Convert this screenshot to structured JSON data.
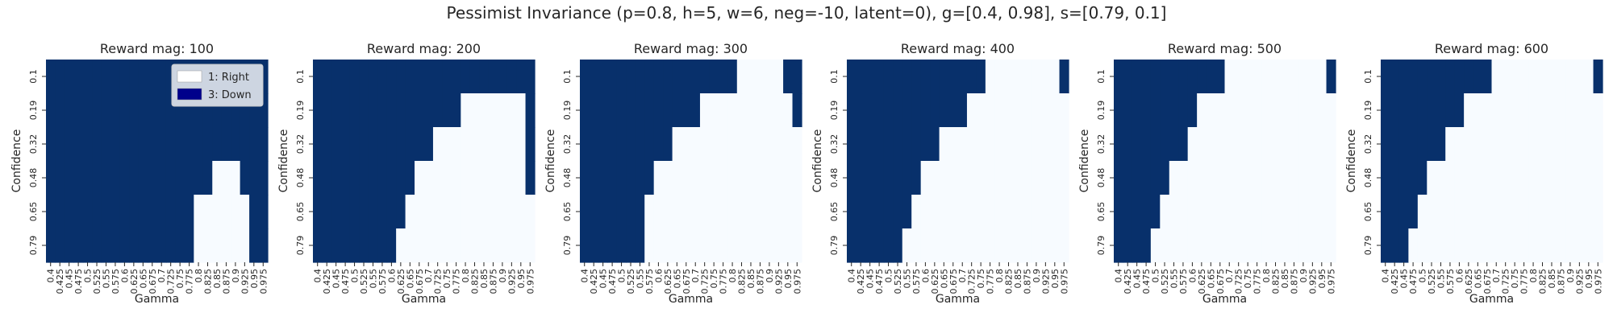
{
  "figure": {
    "title": "Pessimist Invariance (p=0.8, h=5, w=6, neg=-10, latent=0), g=[0.4, 0.98], s=[0.79, 0.1]"
  },
  "colors": {
    "right": "#f7fbff",
    "down": "#08306b",
    "legend_right": "#ffffff",
    "legend_down": "#00008b"
  },
  "legend": {
    "placement": "upper-right of first panel",
    "items": [
      {
        "label": "1: Right",
        "color": "#ffffff"
      },
      {
        "label": "3: Down",
        "color": "#00008b"
      }
    ]
  },
  "chart_data": [
    {
      "type": "heatmap",
      "title": "Reward mag: 100",
      "xlabel": "Gamma",
      "ylabel": "Confidence",
      "gamma_start": 0.4,
      "gamma_step": 0.025,
      "gamma_count": 24,
      "confidence": [
        0.1,
        0.19,
        0.32,
        0.48,
        0.65,
        0.79
      ],
      "x_tick_labels": [
        "0.4",
        "0.425",
        "0.45",
        "0.475",
        "0.5",
        "0.525",
        "0.55",
        "0.575",
        "0.6",
        "0.625",
        "0.65",
        "0.675",
        "0.7",
        "0.725",
        "0.75",
        "0.775",
        "0.8",
        "0.825",
        "0.85",
        "0.875",
        "0.9",
        "0.925",
        "0.95",
        "0.975"
      ],
      "y_tick_labels": [
        "0.1",
        "0.19",
        "0.32",
        "0.48",
        "0.65",
        "0.79"
      ],
      "categories": {
        "1": "Right",
        "3": "Down"
      },
      "rows": [
        [
          3,
          3,
          3,
          3,
          3,
          3,
          3,
          3,
          3,
          3,
          3,
          3,
          3,
          3,
          3,
          3,
          3,
          3,
          3,
          3,
          3,
          3,
          3,
          3
        ],
        [
          3,
          3,
          3,
          3,
          3,
          3,
          3,
          3,
          3,
          3,
          3,
          3,
          3,
          3,
          3,
          3,
          3,
          3,
          3,
          3,
          3,
          3,
          3,
          3
        ],
        [
          3,
          3,
          3,
          3,
          3,
          3,
          3,
          3,
          3,
          3,
          3,
          3,
          3,
          3,
          3,
          3,
          3,
          3,
          3,
          3,
          3,
          3,
          3,
          3
        ],
        [
          3,
          3,
          3,
          3,
          3,
          3,
          3,
          3,
          3,
          3,
          3,
          3,
          3,
          3,
          3,
          3,
          3,
          3,
          1,
          1,
          1,
          3,
          3,
          3
        ],
        [
          3,
          3,
          3,
          3,
          3,
          3,
          3,
          3,
          3,
          3,
          3,
          3,
          3,
          3,
          3,
          3,
          1,
          1,
          1,
          1,
          1,
          1,
          3,
          3
        ],
        [
          3,
          3,
          3,
          3,
          3,
          3,
          3,
          3,
          3,
          3,
          3,
          3,
          3,
          3,
          3,
          3,
          1,
          1,
          1,
          1,
          1,
          1,
          3,
          3
        ]
      ]
    },
    {
      "type": "heatmap",
      "title": "Reward mag: 200",
      "xlabel": "Gamma",
      "ylabel": "Confidence",
      "gamma_start": 0.4,
      "gamma_step": 0.025,
      "gamma_count": 24,
      "confidence": [
        0.1,
        0.19,
        0.32,
        0.48,
        0.65,
        0.79
      ],
      "x_tick_labels": [
        "0.4",
        "0.425",
        "0.45",
        "0.475",
        "0.5",
        "0.525",
        "0.55",
        "0.575",
        "0.6",
        "0.625",
        "0.65",
        "0.675",
        "0.7",
        "0.725",
        "0.75",
        "0.775",
        "0.8",
        "0.825",
        "0.85",
        "0.875",
        "0.9",
        "0.925",
        "0.95",
        "0.975"
      ],
      "y_tick_labels": [
        "0.1",
        "0.19",
        "0.32",
        "0.48",
        "0.65",
        "0.79"
      ],
      "categories": {
        "1": "Right",
        "3": "Down"
      },
      "rows": [
        [
          3,
          3,
          3,
          3,
          3,
          3,
          3,
          3,
          3,
          3,
          3,
          3,
          3,
          3,
          3,
          3,
          3,
          3,
          3,
          3,
          3,
          3,
          3,
          3
        ],
        [
          3,
          3,
          3,
          3,
          3,
          3,
          3,
          3,
          3,
          3,
          3,
          3,
          3,
          3,
          3,
          3,
          1,
          1,
          1,
          1,
          1,
          1,
          1,
          3
        ],
        [
          3,
          3,
          3,
          3,
          3,
          3,
          3,
          3,
          3,
          3,
          3,
          3,
          3,
          1,
          1,
          1,
          1,
          1,
          1,
          1,
          1,
          1,
          1,
          3
        ],
        [
          3,
          3,
          3,
          3,
          3,
          3,
          3,
          3,
          3,
          3,
          3,
          1,
          1,
          1,
          1,
          1,
          1,
          1,
          1,
          1,
          1,
          1,
          1,
          3
        ],
        [
          3,
          3,
          3,
          3,
          3,
          3,
          3,
          3,
          3,
          3,
          1,
          1,
          1,
          1,
          1,
          1,
          1,
          1,
          1,
          1,
          1,
          1,
          1,
          1
        ],
        [
          3,
          3,
          3,
          3,
          3,
          3,
          3,
          3,
          3,
          1,
          1,
          1,
          1,
          1,
          1,
          1,
          1,
          1,
          1,
          1,
          1,
          1,
          1,
          1
        ]
      ]
    },
    {
      "type": "heatmap",
      "title": "Reward mag: 300",
      "xlabel": "Gamma",
      "ylabel": "Confidence",
      "gamma_start": 0.4,
      "gamma_step": 0.025,
      "gamma_count": 24,
      "confidence": [
        0.1,
        0.19,
        0.32,
        0.48,
        0.65,
        0.79
      ],
      "x_tick_labels": [
        "0.4",
        "0.425",
        "0.45",
        "0.475",
        "0.5",
        "0.525",
        "0.55",
        "0.575",
        "0.6",
        "0.625",
        "0.65",
        "0.675",
        "0.7",
        "0.725",
        "0.75",
        "0.775",
        "0.8",
        "0.825",
        "0.85",
        "0.875",
        "0.9",
        "0.925",
        "0.95",
        "0.975"
      ],
      "y_tick_labels": [
        "0.1",
        "0.19",
        "0.32",
        "0.48",
        "0.65",
        "0.79"
      ],
      "categories": {
        "1": "Right",
        "3": "Down"
      },
      "rows": [
        [
          3,
          3,
          3,
          3,
          3,
          3,
          3,
          3,
          3,
          3,
          3,
          3,
          3,
          3,
          3,
          3,
          3,
          1,
          1,
          1,
          1,
          1,
          3,
          3
        ],
        [
          3,
          3,
          3,
          3,
          3,
          3,
          3,
          3,
          3,
          3,
          3,
          3,
          3,
          1,
          1,
          1,
          1,
          1,
          1,
          1,
          1,
          1,
          1,
          3
        ],
        [
          3,
          3,
          3,
          3,
          3,
          3,
          3,
          3,
          3,
          3,
          1,
          1,
          1,
          1,
          1,
          1,
          1,
          1,
          1,
          1,
          1,
          1,
          1,
          1
        ],
        [
          3,
          3,
          3,
          3,
          3,
          3,
          3,
          3,
          1,
          1,
          1,
          1,
          1,
          1,
          1,
          1,
          1,
          1,
          1,
          1,
          1,
          1,
          1,
          1
        ],
        [
          3,
          3,
          3,
          3,
          3,
          3,
          3,
          1,
          1,
          1,
          1,
          1,
          1,
          1,
          1,
          1,
          1,
          1,
          1,
          1,
          1,
          1,
          1,
          1
        ],
        [
          3,
          3,
          3,
          3,
          3,
          3,
          3,
          1,
          1,
          1,
          1,
          1,
          1,
          1,
          1,
          1,
          1,
          1,
          1,
          1,
          1,
          1,
          1,
          1
        ]
      ]
    },
    {
      "type": "heatmap",
      "title": "Reward mag: 400",
      "xlabel": "Gamma",
      "ylabel": "Confidence",
      "gamma_start": 0.4,
      "gamma_step": 0.025,
      "gamma_count": 24,
      "confidence": [
        0.1,
        0.19,
        0.32,
        0.48,
        0.65,
        0.79
      ],
      "x_tick_labels": [
        "0.4",
        "0.425",
        "0.45",
        "0.475",
        "0.5",
        "0.525",
        "0.55",
        "0.575",
        "0.6",
        "0.625",
        "0.65",
        "0.675",
        "0.7",
        "0.725",
        "0.75",
        "0.775",
        "0.8",
        "0.825",
        "0.85",
        "0.875",
        "0.9",
        "0.925",
        "0.95",
        "0.975"
      ],
      "y_tick_labels": [
        "0.1",
        "0.19",
        "0.32",
        "0.48",
        "0.65",
        "0.79"
      ],
      "categories": {
        "1": "Right",
        "3": "Down"
      },
      "rows": [
        [
          3,
          3,
          3,
          3,
          3,
          3,
          3,
          3,
          3,
          3,
          3,
          3,
          3,
          3,
          3,
          1,
          1,
          1,
          1,
          1,
          1,
          1,
          1,
          3
        ],
        [
          3,
          3,
          3,
          3,
          3,
          3,
          3,
          3,
          3,
          3,
          3,
          3,
          3,
          1,
          1,
          1,
          1,
          1,
          1,
          1,
          1,
          1,
          1,
          1
        ],
        [
          3,
          3,
          3,
          3,
          3,
          3,
          3,
          3,
          3,
          3,
          1,
          1,
          1,
          1,
          1,
          1,
          1,
          1,
          1,
          1,
          1,
          1,
          1,
          1
        ],
        [
          3,
          3,
          3,
          3,
          3,
          3,
          3,
          3,
          1,
          1,
          1,
          1,
          1,
          1,
          1,
          1,
          1,
          1,
          1,
          1,
          1,
          1,
          1,
          1
        ],
        [
          3,
          3,
          3,
          3,
          3,
          3,
          3,
          1,
          1,
          1,
          1,
          1,
          1,
          1,
          1,
          1,
          1,
          1,
          1,
          1,
          1,
          1,
          1,
          1
        ],
        [
          3,
          3,
          3,
          3,
          3,
          3,
          1,
          1,
          1,
          1,
          1,
          1,
          1,
          1,
          1,
          1,
          1,
          1,
          1,
          1,
          1,
          1,
          1,
          1
        ]
      ]
    },
    {
      "type": "heatmap",
      "title": "Reward mag: 500",
      "xlabel": "Gamma",
      "ylabel": "Confidence",
      "gamma_start": 0.4,
      "gamma_step": 0.025,
      "gamma_count": 24,
      "confidence": [
        0.1,
        0.19,
        0.32,
        0.48,
        0.65,
        0.79
      ],
      "x_tick_labels": [
        "0.4",
        "0.425",
        "0.45",
        "0.475",
        "0.5",
        "0.525",
        "0.55",
        "0.575",
        "0.6",
        "0.625",
        "0.65",
        "0.675",
        "0.7",
        "0.725",
        "0.75",
        "0.775",
        "0.8",
        "0.825",
        "0.85",
        "0.875",
        "0.9",
        "0.925",
        "0.95",
        "0.975"
      ],
      "y_tick_labels": [
        "0.1",
        "0.19",
        "0.32",
        "0.48",
        "0.65",
        "0.79"
      ],
      "categories": {
        "1": "Right",
        "3": "Down"
      },
      "rows": [
        [
          3,
          3,
          3,
          3,
          3,
          3,
          3,
          3,
          3,
          3,
          3,
          3,
          1,
          1,
          1,
          1,
          1,
          1,
          1,
          1,
          1,
          1,
          1,
          3
        ],
        [
          3,
          3,
          3,
          3,
          3,
          3,
          3,
          3,
          3,
          1,
          1,
          1,
          1,
          1,
          1,
          1,
          1,
          1,
          1,
          1,
          1,
          1,
          1,
          1
        ],
        [
          3,
          3,
          3,
          3,
          3,
          3,
          3,
          3,
          1,
          1,
          1,
          1,
          1,
          1,
          1,
          1,
          1,
          1,
          1,
          1,
          1,
          1,
          1,
          1
        ],
        [
          3,
          3,
          3,
          3,
          3,
          3,
          1,
          1,
          1,
          1,
          1,
          1,
          1,
          1,
          1,
          1,
          1,
          1,
          1,
          1,
          1,
          1,
          1,
          1
        ],
        [
          3,
          3,
          3,
          3,
          3,
          1,
          1,
          1,
          1,
          1,
          1,
          1,
          1,
          1,
          1,
          1,
          1,
          1,
          1,
          1,
          1,
          1,
          1,
          1
        ],
        [
          3,
          3,
          3,
          3,
          1,
          1,
          1,
          1,
          1,
          1,
          1,
          1,
          1,
          1,
          1,
          1,
          1,
          1,
          1,
          1,
          1,
          1,
          1,
          1
        ]
      ]
    },
    {
      "type": "heatmap",
      "title": "Reward mag: 600",
      "xlabel": "Gamma",
      "ylabel": "Confidence",
      "gamma_start": 0.4,
      "gamma_step": 0.025,
      "gamma_count": 24,
      "confidence": [
        0.1,
        0.19,
        0.32,
        0.48,
        0.65,
        0.79
      ],
      "x_tick_labels": [
        "0.4",
        "0.425",
        "0.45",
        "0.475",
        "0.5",
        "0.525",
        "0.55",
        "0.575",
        "0.6",
        "0.625",
        "0.65",
        "0.675",
        "0.7",
        "0.725",
        "0.75",
        "0.775",
        "0.8",
        "0.825",
        "0.85",
        "0.875",
        "0.9",
        "0.925",
        "0.95",
        "0.975"
      ],
      "y_tick_labels": [
        "0.1",
        "0.19",
        "0.32",
        "0.48",
        "0.65",
        "0.79"
      ],
      "categories": {
        "1": "Right",
        "3": "Down"
      },
      "rows": [
        [
          3,
          3,
          3,
          3,
          3,
          3,
          3,
          3,
          3,
          3,
          3,
          3,
          1,
          1,
          1,
          1,
          1,
          1,
          1,
          1,
          1,
          1,
          1,
          3
        ],
        [
          3,
          3,
          3,
          3,
          3,
          3,
          3,
          3,
          3,
          1,
          1,
          1,
          1,
          1,
          1,
          1,
          1,
          1,
          1,
          1,
          1,
          1,
          1,
          1
        ],
        [
          3,
          3,
          3,
          3,
          3,
          3,
          3,
          1,
          1,
          1,
          1,
          1,
          1,
          1,
          1,
          1,
          1,
          1,
          1,
          1,
          1,
          1,
          1,
          1
        ],
        [
          3,
          3,
          3,
          3,
          3,
          1,
          1,
          1,
          1,
          1,
          1,
          1,
          1,
          1,
          1,
          1,
          1,
          1,
          1,
          1,
          1,
          1,
          1,
          1
        ],
        [
          3,
          3,
          3,
          3,
          1,
          1,
          1,
          1,
          1,
          1,
          1,
          1,
          1,
          1,
          1,
          1,
          1,
          1,
          1,
          1,
          1,
          1,
          1,
          1
        ],
        [
          3,
          3,
          3,
          1,
          1,
          1,
          1,
          1,
          1,
          1,
          1,
          1,
          1,
          1,
          1,
          1,
          1,
          1,
          1,
          1,
          1,
          1,
          1,
          1
        ]
      ]
    }
  ]
}
